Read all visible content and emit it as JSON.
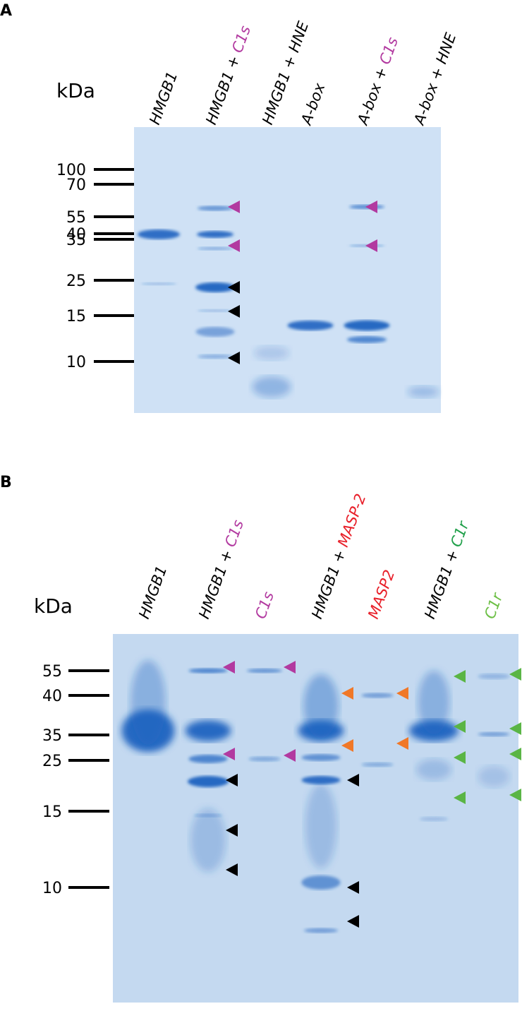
{
  "panel_a": {
    "label": "A",
    "unit": "kDa",
    "lanes": [
      {
        "label": "HMGB1"
      },
      {
        "label": "HMGB1 +",
        "enzyme": "C1s"
      },
      {
        "label": "HMGB1 + HNE"
      },
      {
        "label": "A-box"
      },
      {
        "label": "A-box +",
        "enzyme": "C1s"
      },
      {
        "label": "A-box + HNE"
      }
    ],
    "markers": [
      "100",
      "70",
      "55",
      "40",
      "35",
      "25",
      "15",
      "10"
    ]
  },
  "panel_b": {
    "label": "B",
    "unit": "kDa",
    "lanes": [
      {
        "label": "HMGB1"
      },
      {
        "label": "HMGB1 +",
        "enzyme": "C1s"
      },
      {
        "enzyme": "C1s"
      },
      {
        "label": "HMGB1 +",
        "enzyme": "MASP-2"
      },
      {
        "enzyme": "MASP2"
      },
      {
        "label": "HMGB1 +",
        "enzyme": "C1r"
      },
      {
        "enzyme": "C1r"
      }
    ],
    "markers": [
      "55",
      "40",
      "35",
      "25",
      "15",
      "10"
    ]
  }
}
